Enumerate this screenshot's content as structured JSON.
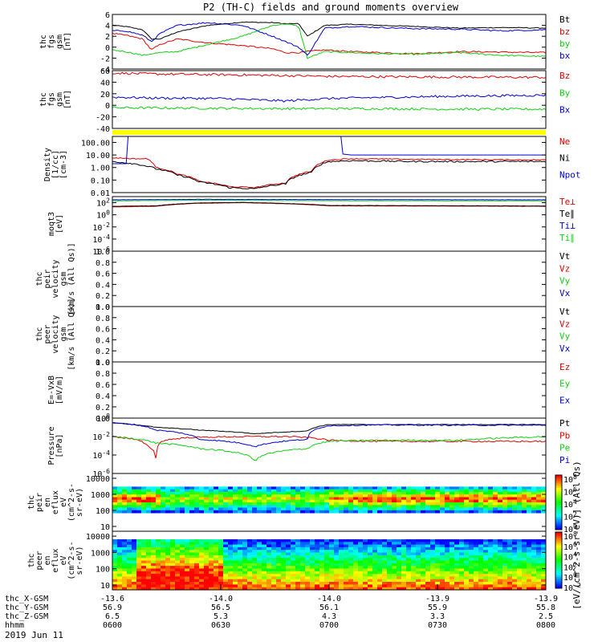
{
  "title": "P2 (TH-C) fields and ground moments overview",
  "date_label": "2019 Jun 11",
  "colors": {
    "black": "#000000",
    "red": "#e00000",
    "green": "#10d010",
    "blue": "#0000d0",
    "yellow": "#ffff00"
  },
  "time_axis": {
    "ticks": [
      "0600",
      "0630",
      "0700",
      "0730",
      "0800"
    ],
    "rows": [
      {
        "label": "thc_X-GSM",
        "values": [
          "-13.6",
          "-14.0",
          "-14.0",
          "-13.9",
          "-13.9"
        ]
      },
      {
        "label": "thc_Y-GSM",
        "values": [
          "56.9",
          "56.5",
          "56.1",
          "55.9",
          "55.8"
        ]
      },
      {
        "label": "thc_Z-GSM",
        "values": [
          "6.5",
          "5.3",
          "4.3",
          "3.3",
          "2.5"
        ]
      },
      {
        "label": "hhmm",
        "values": [
          "0600",
          "0630",
          "0700",
          "0730",
          "0800"
        ]
      }
    ]
  },
  "chart_data": [
    {
      "type": "line",
      "id": "panel1",
      "ylabel": [
        "thc",
        "fgs",
        "gsm",
        "[nT]"
      ],
      "ylim": [
        -4,
        6
      ],
      "yticks": [
        "6",
        "4",
        "2",
        "0",
        "-2",
        "-4"
      ],
      "legend": [
        {
          "name": "Bt",
          "color": "#000000"
        },
        {
          "name": "bz",
          "color": "#e00000"
        },
        {
          "name": "by",
          "color": "#10d010"
        },
        {
          "name": "bx",
          "color": "#0000d0"
        }
      ],
      "series": [
        {
          "name": "Bt",
          "color": "#000000",
          "noise": 0.15,
          "x": [
            0,
            0.03,
            0.07,
            0.09,
            0.11,
            0.15,
            0.22,
            0.3,
            0.37,
            0.4,
            0.43,
            0.45,
            0.49,
            0.55,
            0.62,
            0.7,
            0.8,
            0.9,
            1.0
          ],
          "y": [
            4.0,
            3.8,
            3.2,
            1.5,
            1.5,
            2.8,
            4.0,
            4.6,
            4.5,
            4.3,
            4.3,
            2.0,
            4.0,
            4.2,
            4.0,
            3.8,
            3.5,
            3.6,
            3.5
          ]
        },
        {
          "name": "bz",
          "color": "#e00000",
          "noise": 0.25,
          "x": [
            0,
            0.03,
            0.07,
            0.09,
            0.11,
            0.15,
            0.22,
            0.3,
            0.37,
            0.4,
            0.43,
            0.45,
            0.49,
            0.55,
            0.62,
            0.7,
            0.8,
            0.9,
            1.0
          ],
          "y": [
            2.5,
            2.2,
            1.5,
            -0.5,
            0.5,
            1.5,
            0.8,
            0.3,
            -0.3,
            -1.0,
            -1.0,
            -0.8,
            -0.5,
            -0.8,
            -1.0,
            -1.2,
            -0.8,
            -0.9,
            -1.0
          ]
        },
        {
          "name": "by",
          "color": "#10d010",
          "noise": 0.25,
          "x": [
            0,
            0.03,
            0.07,
            0.09,
            0.11,
            0.15,
            0.22,
            0.3,
            0.37,
            0.4,
            0.43,
            0.45,
            0.49,
            0.55,
            0.62,
            0.7,
            0.8,
            0.9,
            1.0
          ],
          "y": [
            -0.5,
            -0.8,
            -1.5,
            -1.2,
            -1.0,
            -0.8,
            0.5,
            2.0,
            4.0,
            4.3,
            3.8,
            -2.0,
            -0.8,
            -1.0,
            -1.2,
            -1.3,
            -1.0,
            -1.5,
            -1.7
          ]
        },
        {
          "name": "bx",
          "color": "#0000d0",
          "noise": 0.25,
          "x": [
            0,
            0.03,
            0.07,
            0.09,
            0.11,
            0.15,
            0.22,
            0.3,
            0.37,
            0.4,
            0.43,
            0.45,
            0.49,
            0.55,
            0.62,
            0.7,
            0.8,
            0.9,
            1.0
          ],
          "y": [
            3.0,
            3.0,
            2.2,
            1.0,
            2.5,
            4.0,
            4.5,
            4.0,
            2.0,
            1.0,
            0.0,
            -1.5,
            3.5,
            3.8,
            3.6,
            3.4,
            3.3,
            3.0,
            3.2
          ]
        }
      ]
    },
    {
      "type": "line",
      "id": "panel2",
      "ylabel": [
        "thc",
        "fgs",
        "gsm",
        "[nT]"
      ],
      "ylim": [
        -60,
        60
      ],
      "yticks": [
        "60",
        "40",
        "20",
        "0",
        "-20",
        "-40"
      ],
      "legend": [
        {
          "name": "Bz",
          "color": "#e00000"
        },
        {
          "name": "By",
          "color": "#10d010"
        },
        {
          "name": "Bx",
          "color": "#0000d0"
        }
      ],
      "series": [
        {
          "name": "Bz",
          "color": "#e00000",
          "noise": 0.4,
          "x": [
            0,
            0.1,
            0.3,
            0.45,
            0.5,
            0.7,
            1.0
          ],
          "y": [
            55,
            53,
            51,
            49,
            48,
            47,
            46
          ]
        },
        {
          "name": "By",
          "color": "#10d010",
          "noise": 0.4,
          "x": [
            0,
            0.2,
            0.4,
            0.6,
            0.8,
            1.0
          ],
          "y": [
            -17,
            -18,
            -19,
            -19,
            -20,
            -20
          ]
        },
        {
          "name": "Bx",
          "color": "#0000d0",
          "noise": 0.4,
          "x": [
            0,
            0.1,
            0.25,
            0.4,
            0.45,
            0.5,
            0.6,
            0.8,
            1.0
          ],
          "y": [
            5,
            3,
            2,
            -3,
            0,
            2,
            4,
            7,
            9
          ]
        }
      ]
    },
    {
      "type": "line",
      "id": "panel3",
      "scale": "log",
      "ylabel": [
        "Density",
        "[1/cc]",
        "[cm-3]"
      ],
      "ylim": [
        0.01,
        300
      ],
      "yticks": [
        "100.00",
        "10.00",
        "1.00",
        "0.10",
        "0.01"
      ],
      "ytick_values": [
        100,
        10,
        1,
        0.1,
        0.01
      ],
      "legend": [
        {
          "name": "Ne",
          "color": "#e00000"
        },
        {
          "name": "Ni",
          "color": "#000000"
        },
        {
          "name": "Npot",
          "color": "#0000d0"
        }
      ],
      "series": [
        {
          "name": "Ne",
          "color": "#e00000",
          "noise": 0.04,
          "x": [
            0,
            0.05,
            0.08,
            0.1,
            0.15,
            0.2,
            0.27,
            0.33,
            0.4,
            0.46,
            0.5,
            0.55,
            0.7,
            1.0
          ],
          "y": [
            6,
            5,
            5,
            1,
            0.3,
            0.08,
            0.03,
            0.025,
            0.06,
            0.5,
            4,
            5,
            4.5,
            4
          ]
        },
        {
          "name": "Ni",
          "color": "#000000",
          "noise": 0.06,
          "x": [
            0,
            0.05,
            0.1,
            0.15,
            0.2,
            0.27,
            0.33,
            0.4,
            0.46,
            0.5,
            0.55,
            0.7,
            1.0
          ],
          "y": [
            3,
            2,
            0.8,
            0.25,
            0.07,
            0.025,
            0.02,
            0.05,
            0.4,
            3,
            3.5,
            3,
            3
          ]
        },
        {
          "name": "Npot",
          "color": "#0000d0",
          "noise": 0.0,
          "x": [
            0,
            0.035,
            0.036,
            0.4,
            0.53,
            0.531,
            0.55,
            0.8,
            1.0
          ],
          "y": [
            2,
            2,
            300,
            300,
            300,
            12,
            10,
            10,
            10
          ]
        }
      ]
    },
    {
      "type": "line",
      "id": "panel4",
      "scale": "log",
      "ylabel": [
        "moqt3",
        "[eV]"
      ],
      "ylim": [
        1e-06,
        1000
      ],
      "yticks": [
        "10^2",
        "10^0",
        "10^-2",
        "10^-4",
        "10^-6"
      ],
      "ytick_values": [
        100,
        1,
        0.01,
        0.0001,
        1e-06
      ],
      "legend": [
        {
          "name": "Te⊥",
          "color": "#e00000"
        },
        {
          "name": "Te∥",
          "color": "#000000"
        },
        {
          "name": "Ti⊥",
          "color": "#0000d0"
        },
        {
          "name": "Ti∥",
          "color": "#10d010"
        }
      ],
      "series": [
        {
          "name": "Te⊥",
          "color": "#e00000",
          "noise": 0.02,
          "x": [
            0,
            0.1,
            0.2,
            0.3,
            0.5,
            1.0
          ],
          "y": [
            20,
            25,
            80,
            100,
            30,
            25
          ]
        },
        {
          "name": "Te∥",
          "color": "#000000",
          "noise": 0.02,
          "x": [
            0,
            0.1,
            0.2,
            0.3,
            0.5,
            1.0
          ],
          "y": [
            25,
            30,
            90,
            110,
            35,
            28
          ]
        },
        {
          "name": "Ti⊥",
          "color": "#0000d0",
          "noise": 0.02,
          "x": [
            0,
            0.2,
            0.5,
            1.0
          ],
          "y": [
            300,
            350,
            320,
            300
          ]
        },
        {
          "name": "Ti∥",
          "color": "#10d010",
          "noise": 0.02,
          "x": [
            0,
            0.2,
            0.5,
            1.0
          ],
          "y": [
            200,
            250,
            210,
            200
          ]
        }
      ]
    },
    {
      "type": "line",
      "id": "panel5",
      "ylabel": [
        "thc",
        "peir",
        "velocity",
        "gsm",
        "[km/s (All Qs)]"
      ],
      "ylim": [
        0,
        1
      ],
      "yticks": [
        "1.0",
        "0.8",
        "0.6",
        "0.4",
        "0.2",
        "0.0"
      ],
      "legend": [
        {
          "name": "Vt",
          "color": "#000000"
        },
        {
          "name": "Vz",
          "color": "#e00000"
        },
        {
          "name": "Vy",
          "color": "#10d010"
        },
        {
          "name": "Vx",
          "color": "#0000d0"
        }
      ],
      "series": []
    },
    {
      "type": "line",
      "id": "panel6",
      "ylabel": [
        "thc",
        "peer",
        "velocity",
        "gsm",
        "[km/s (All Qs)]"
      ],
      "ylim": [
        0,
        1
      ],
      "yticks": [
        "1.0",
        "0.8",
        "0.6",
        "0.4",
        "0.2",
        "0.0"
      ],
      "legend": [
        {
          "name": "Vt",
          "color": "#000000"
        },
        {
          "name": "Vz",
          "color": "#e00000"
        },
        {
          "name": "Vy",
          "color": "#10d010"
        },
        {
          "name": "Vx",
          "color": "#0000d0"
        }
      ],
      "series": []
    },
    {
      "type": "line",
      "id": "panel7",
      "ylabel": [
        "E=-VxB",
        "[mV/m]"
      ],
      "ylim": [
        0,
        1
      ],
      "yticks": [
        "1.0",
        "0.8",
        "0.6",
        "0.4",
        "0.2",
        "0.0"
      ],
      "legend": [
        {
          "name": "Ez",
          "color": "#e00000"
        },
        {
          "name": "Ey",
          "color": "#10d010"
        },
        {
          "name": "Ex",
          "color": "#0000d0"
        }
      ],
      "series": []
    },
    {
      "type": "line",
      "id": "panel8",
      "scale": "log",
      "ylabel": [
        "Pressure",
        "[nPa]"
      ],
      "ylim": [
        1e-06,
        1
      ],
      "yticks": [
        "10^0",
        "10^-2",
        "10^-4",
        "10^-6"
      ],
      "ytick_values": [
        1,
        0.01,
        0.0001,
        1e-06
      ],
      "legend": [
        {
          "name": "Pt",
          "color": "#000000"
        },
        {
          "name": "Pb",
          "color": "#e00000"
        },
        {
          "name": "Pe",
          "color": "#10d010"
        },
        {
          "name": "Pi",
          "color": "#0000d0"
        }
      ],
      "series": [
        {
          "name": "Pt",
          "color": "#000000",
          "noise": 0.03,
          "x": [
            0,
            0.05,
            0.1,
            0.2,
            0.33,
            0.45,
            0.5,
            0.6,
            0.8,
            1.0
          ],
          "y": [
            0.3,
            0.2,
            0.1,
            0.05,
            0.02,
            0.04,
            0.2,
            0.2,
            0.2,
            0.2
          ]
        },
        {
          "name": "Pb",
          "color": "#e00000",
          "noise": 0.08,
          "x": [
            0,
            0.05,
            0.08,
            0.1,
            0.12,
            0.18,
            0.3,
            0.4,
            0.45,
            0.5,
            0.6,
            0.8,
            1.0
          ],
          "y": [
            0.01,
            0.005,
            0.001,
            5e-05,
            0.004,
            0.008,
            0.01,
            0.01,
            0.008,
            0.004,
            0.003,
            0.003,
            0.003
          ]
        },
        {
          "name": "Pe",
          "color": "#10d010",
          "noise": 0.08,
          "x": [
            0,
            0.1,
            0.2,
            0.33,
            0.45,
            0.5,
            0.6,
            0.8,
            1.0
          ],
          "y": [
            0.01,
            0.002,
            0.0005,
            2e-05,
            0.0005,
            0.003,
            0.004,
            0.004,
            0.01
          ]
        },
        {
          "name": "Pi",
          "color": "#0000d0",
          "noise": 0.06,
          "x": [
            0,
            0.05,
            0.1,
            0.2,
            0.33,
            0.45,
            0.5,
            0.6,
            0.8,
            1.0
          ],
          "y": [
            0.3,
            0.2,
            0.05,
            0.005,
            0.0008,
            0.005,
            0.15,
            0.18,
            0.17,
            0.17
          ]
        }
      ]
    },
    {
      "type": "heatmap",
      "id": "panel9",
      "scale": "log",
      "ylabel": [
        "thc",
        "peir",
        "en",
        "eflux",
        "eV",
        "(cm^2-s-",
        "sr-eV)"
      ],
      "ylim": [
        5,
        20000
      ],
      "yticks": [
        "10000",
        "1000",
        "100",
        "10"
      ],
      "ytick_values": [
        10000,
        1000,
        100,
        10
      ]
    },
    {
      "type": "heatmap",
      "id": "panel10",
      "scale": "log",
      "ylabel": [
        "thc",
        "peer",
        "en",
        "eflux",
        "eV",
        "(cm^2-s-",
        "sr-eV)"
      ],
      "ylim": [
        5,
        20000
      ],
      "yticks": [
        "10000",
        "1000",
        "100",
        "10"
      ],
      "ytick_values": [
        10000,
        1000,
        100,
        10
      ]
    }
  ],
  "colorbars": [
    {
      "id": "cb9",
      "ticks": [
        "10^8",
        "10^6",
        "10^4",
        "10^2",
        "10^0"
      ]
    },
    {
      "id": "cb10",
      "ticks": [
        "10^8",
        "10^6",
        "10^4",
        "10^2",
        "10^0",
        "10^-2"
      ]
    }
  ],
  "colorbar_label": "[eV/(cm^2-s-sr-eV)] (All Qs)"
}
